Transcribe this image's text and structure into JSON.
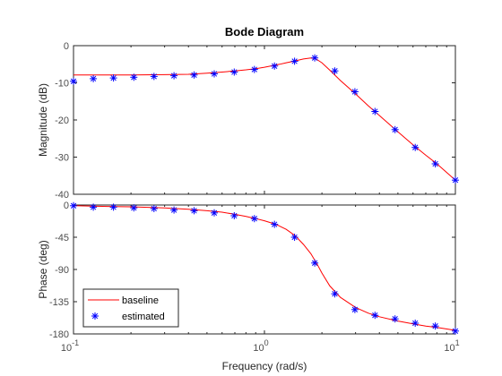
{
  "chart_data": {
    "type": "line",
    "title": "Bode Diagram",
    "xlabel": "Frequency  (rad/s)",
    "x_scale": "log",
    "xlim": [
      0.1,
      10
    ],
    "x_ticks": [
      0.1,
      1,
      10
    ],
    "x_tick_labels": [
      {
        "base": "10",
        "exp": "-1"
      },
      {
        "base": "10",
        "exp": "0"
      },
      {
        "base": "10",
        "exp": "1"
      }
    ],
    "legend": {
      "placement": "bottom-left",
      "panel": "phase"
    },
    "grid": false,
    "colors": {
      "baseline": "#ff0000",
      "estimated": "#0000ff"
    },
    "panels": [
      {
        "name": "magnitude",
        "ylabel": "Magnitude (dB)",
        "ylim": [
          -40,
          0
        ],
        "y_ticks": [
          0,
          -10,
          -20,
          -30,
          -40
        ],
        "y_tick_labels": [
          "0",
          "-10",
          "-20",
          "-30",
          "-40"
        ],
        "series": [
          {
            "name": "baseline",
            "style": "line",
            "x": [
              0.1,
              0.15,
              0.2,
              0.3,
              0.4,
              0.5,
              0.6,
              0.7,
              0.8,
              0.9,
              1.0,
              1.1,
              1.2,
              1.3,
              1.45,
              1.6,
              1.75,
              1.85,
              2.0,
              2.2,
              2.5,
              3.0,
              3.5,
              4.0,
              5.0,
              6.0,
              7.0,
              8.0,
              10.0
            ],
            "y": [
              -7.9,
              -7.9,
              -7.9,
              -7.8,
              -7.7,
              -7.4,
              -7.1,
              -6.8,
              -6.5,
              -6.2,
              -5.8,
              -5.4,
              -5.0,
              -4.6,
              -4.1,
              -3.6,
              -3.3,
              -3.5,
              -4.6,
              -6.6,
              -9.4,
              -13.0,
              -16.2,
              -18.8,
              -23.2,
              -26.7,
              -29.5,
              -31.8,
              -36.2
            ]
          },
          {
            "name": "estimated",
            "style": "markers",
            "marker": "asterisk",
            "x": [
              0.1,
              0.127,
              0.162,
              0.207,
              0.264,
              0.336,
              0.428,
              0.546,
              0.695,
              0.886,
              1.129,
              1.438,
              1.833,
              2.336,
              2.976,
              3.793,
              4.833,
              6.158,
              7.848,
              10.0
            ],
            "y": [
              -9.6,
              -8.9,
              -8.7,
              -8.5,
              -8.3,
              -8.1,
              -7.9,
              -7.6,
              -7.1,
              -6.4,
              -5.5,
              -4.2,
              -3.3,
              -6.8,
              -12.4,
              -17.7,
              -22.6,
              -27.4,
              -31.8,
              -36.2
            ]
          }
        ]
      },
      {
        "name": "phase",
        "ylabel": "Phase (deg)",
        "ylim": [
          -180,
          0
        ],
        "y_ticks": [
          0,
          -45,
          -90,
          -135,
          -180
        ],
        "y_tick_labels": [
          "0",
          "-45",
          "-90",
          "-135",
          "-180"
        ],
        "series": [
          {
            "name": "baseline",
            "style": "line",
            "x": [
              0.1,
              0.15,
              0.2,
              0.3,
              0.4,
              0.5,
              0.6,
              0.7,
              0.8,
              0.9,
              1.0,
              1.15,
              1.3,
              1.45,
              1.6,
              1.75,
              1.9,
              2.0,
              2.2,
              2.5,
              3.0,
              3.5,
              4.0,
              5.0,
              6.0,
              7.0,
              8.0,
              10.0
            ],
            "y": [
              -1,
              -2,
              -2.5,
              -4,
              -6,
              -8,
              -10,
              -13,
              -16,
              -19,
              -22,
              -27,
              -34,
              -43,
              -55,
              -68,
              -84,
              -95,
              -113,
              -129,
              -143,
              -151,
              -156,
              -162,
              -166,
              -169,
              -171,
              -175
            ]
          },
          {
            "name": "estimated",
            "style": "markers",
            "marker": "asterisk",
            "x": [
              0.1,
              0.127,
              0.162,
              0.207,
              0.264,
              0.336,
              0.428,
              0.546,
              0.695,
              0.886,
              1.129,
              1.438,
              1.833,
              2.336,
              2.976,
              3.793,
              4.833,
              6.158,
              7.848,
              10.0
            ],
            "y": [
              -1,
              -3,
              -3,
              -4,
              -5,
              -7,
              -8,
              -11,
              -15,
              -19,
              -27,
              -45,
              -81,
              -124,
              -146,
              -154,
              -159,
              -165,
              -169,
              -176
            ]
          }
        ]
      }
    ]
  }
}
